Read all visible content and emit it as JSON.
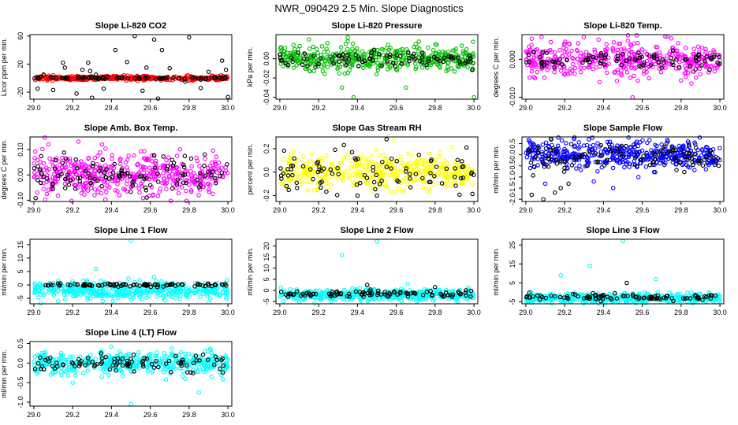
{
  "figure_title": "NWR_090429  2.5 Min. Slope Diagnostics",
  "colors": {
    "co2": "#ff0000",
    "pressure": "#00c000",
    "temp": "#ff00ff",
    "box_temp": "#ff00ff",
    "rh": "#ffff00",
    "sample_flow": "#0000ff",
    "line_flow": "#00ffff",
    "reference": "#000000"
  },
  "chart_data": [
    {
      "type": "scatter",
      "id": "co2",
      "color_key": "co2",
      "title": "Slope Li-820 CO2",
      "ylabel": "Licor ppm per min.",
      "xlim": [
        28.98,
        30.02
      ],
      "ylim": [
        -30,
        62
      ],
      "xticks": [
        "29.0",
        "29.2",
        "29.4",
        "29.6",
        "29.8",
        "30.0"
      ],
      "yticks": [
        {
          "v": -20,
          "t": "-20"
        },
        {
          "v": 20,
          "t": "20"
        },
        {
          "v": 60,
          "t": "60"
        }
      ],
      "series": [
        {
          "role": "main",
          "center": 0,
          "spread": 1.5,
          "n": 420
        },
        {
          "role": "reference",
          "center": 0,
          "spread": 1,
          "n": 80,
          "outliers": [
            [
              29.02,
              -15
            ],
            [
              29.05,
              5
            ],
            [
              29.1,
              -17
            ],
            [
              29.15,
              22
            ],
            [
              29.16,
              15
            ],
            [
              29.22,
              -22
            ],
            [
              29.25,
              12
            ],
            [
              29.28,
              22
            ],
            [
              29.29,
              10
            ],
            [
              29.3,
              -28
            ],
            [
              29.32,
              5
            ],
            [
              29.36,
              -15
            ],
            [
              29.38,
              2
            ],
            [
              29.42,
              40
            ],
            [
              29.48,
              23
            ],
            [
              29.52,
              60
            ],
            [
              29.56,
              -18
            ],
            [
              29.58,
              15
            ],
            [
              29.62,
              55
            ],
            [
              29.64,
              -35
            ],
            [
              29.66,
              40
            ],
            [
              29.7,
              14
            ],
            [
              29.78,
              -5
            ],
            [
              29.8,
              58
            ],
            [
              29.86,
              -14
            ],
            [
              29.9,
              9
            ],
            [
              29.97,
              25
            ],
            [
              29.99,
              12
            ],
            [
              30.0,
              -27
            ]
          ]
        }
      ]
    },
    {
      "type": "scatter",
      "id": "pressure",
      "color_key": "pressure",
      "title": "Slope Li-820 Pressure",
      "ylabel": "kPa per min.",
      "xlim": [
        28.98,
        30.02
      ],
      "ylim": [
        -0.042,
        0.025
      ],
      "xticks": [
        "29.0",
        "29.2",
        "29.4",
        "29.6",
        "29.8",
        "30.0"
      ],
      "yticks": [
        {
          "v": -0.04,
          "t": "-0.04"
        },
        {
          "v": -0.02,
          "t": "-0.02"
        },
        {
          "v": 0.0,
          "t": "0.00"
        }
      ],
      "series": [
        {
          "role": "main",
          "center": 0.0,
          "spread": 0.006,
          "n": 430,
          "outliers": [
            [
              29.15,
              0.02
            ],
            [
              29.32,
              -0.03
            ],
            [
              29.35,
              0.018
            ],
            [
              29.38,
              -0.04
            ],
            [
              29.65,
              -0.03
            ],
            [
              29.7,
              0.015
            ],
            [
              30.0,
              -0.04
            ]
          ]
        },
        {
          "role": "reference",
          "center": 0.0,
          "spread": 0.004,
          "n": 90
        }
      ]
    },
    {
      "type": "scatter",
      "id": "temp",
      "color_key": "temp",
      "title": "Slope Li-820 Temp.",
      "ylabel": "degrees C per min.",
      "xlim": [
        28.98,
        30.02
      ],
      "ylim": [
        -0.0105,
        0.0065
      ],
      "xticks": [
        "29.0",
        "29.2",
        "29.4",
        "29.6",
        "29.8",
        "30.0"
      ],
      "yticks": [
        {
          "v": -0.01,
          "t": "-0.010"
        },
        {
          "v": 0.0,
          "t": "0.000"
        }
      ],
      "series": [
        {
          "role": "main",
          "center": 0.0,
          "spread": 0.0022,
          "n": 430,
          "outliers": [
            [
              29.38,
              -0.006
            ],
            [
              29.55,
              -0.01
            ],
            [
              29.73,
              0.006
            ],
            [
              29.75,
              0.0055
            ]
          ]
        },
        {
          "role": "reference",
          "center": 0.0,
          "spread": 0.0012,
          "n": 90
        }
      ]
    },
    {
      "type": "scatter",
      "id": "box_temp",
      "color_key": "box_temp",
      "title": "Slope Amb. Box Temp.",
      "ylabel": "degrees C per min.",
      "xlim": [
        28.98,
        30.02
      ],
      "ylim": [
        -0.105,
        0.15
      ],
      "xticks": [
        "29.0",
        "29.2",
        "29.4",
        "29.6",
        "29.8",
        "30.0"
      ],
      "yticks": [
        {
          "v": -0.1,
          "t": "-0.10"
        },
        {
          "v": 0.0,
          "t": "0.00"
        },
        {
          "v": 0.1,
          "t": "0.10"
        }
      ],
      "series": [
        {
          "role": "main",
          "center": 0.0,
          "spread": 0.045,
          "n": 460
        },
        {
          "role": "reference",
          "center": 0.0,
          "spread": 0.04,
          "n": 110
        }
      ]
    },
    {
      "type": "scatter",
      "id": "rh",
      "color_key": "rh",
      "title": "Slope Gas Stream RH",
      "ylabel": "percent per min.",
      "xlim": [
        28.98,
        30.02
      ],
      "ylim": [
        -0.25,
        0.3
      ],
      "xticks": [
        "29.0",
        "29.2",
        "29.4",
        "29.6",
        "29.8",
        "30.0"
      ],
      "yticks": [
        {
          "v": -0.2,
          "t": "-0.2"
        },
        {
          "v": 0.0,
          "t": "0.0"
        },
        {
          "v": 0.2,
          "t": "0.2"
        }
      ],
      "series": [
        {
          "role": "main",
          "center": 0.0,
          "spread": 0.07,
          "n": 430
        },
        {
          "role": "reference",
          "center": 0.0,
          "spread": 0.08,
          "n": 90,
          "outliers": [
            [
              29.33,
              0.23
            ],
            [
              29.4,
              -0.2
            ],
            [
              29.55,
              0.28
            ],
            [
              29.5,
              -0.2
            ]
          ]
        }
      ]
    },
    {
      "type": "scatter",
      "id": "sample_flow",
      "color_key": "sample_flow",
      "title": "Slope Sample Flow",
      "ylabel": "ml/min per min.",
      "xlim": [
        28.98,
        30.02
      ],
      "ylim": [
        -2.1,
        0.8
      ],
      "xticks": [
        "29.0",
        "29.2",
        "29.4",
        "29.6",
        "29.8",
        "30.0"
      ],
      "yticks": [
        {
          "v": -2.0,
          "t": "-2.0"
        },
        {
          "v": -1.5,
          "t": "-1.5"
        },
        {
          "v": -1.0,
          "t": "-1.0"
        },
        {
          "v": -0.5,
          "t": "-0.5"
        },
        {
          "v": 0.0,
          "t": "0.0"
        },
        {
          "v": 0.5,
          "t": "0.5"
        }
      ],
      "series": [
        {
          "role": "main",
          "center": 0.0,
          "spread": 0.3,
          "n": 450,
          "outliers": [
            [
              29.1,
              -1.3
            ],
            [
              29.35,
              -1.2
            ],
            [
              29.45,
              -1.5
            ],
            [
              29.58,
              -1.0
            ]
          ]
        },
        {
          "role": "reference",
          "center": -0.1,
          "spread": 0.35,
          "n": 100,
          "outliers": [
            [
              29.03,
              -1.8
            ],
            [
              29.09,
              -2.0
            ],
            [
              29.15,
              -1.7
            ],
            [
              29.18,
              -1.5
            ],
            [
              29.22,
              -1.3
            ]
          ]
        }
      ]
    },
    {
      "type": "scatter",
      "id": "line1",
      "color_key": "line_flow",
      "title": "Slope Line 1 Flow",
      "ylabel": "ml/min per min.",
      "xlim": [
        28.98,
        30.02
      ],
      "ylim": [
        -7,
        17
      ],
      "xticks": [
        "29.0",
        "29.2",
        "29.4",
        "29.6",
        "29.8",
        "30.0"
      ],
      "yticks": [
        {
          "v": -5,
          "t": "-5"
        },
        {
          "v": 0,
          "t": "0"
        },
        {
          "v": 5,
          "t": "5"
        },
        {
          "v": 10,
          "t": "10"
        },
        {
          "v": 15,
          "t": "15"
        }
      ],
      "series": [
        {
          "role": "main",
          "center": -2,
          "spread": 1.6,
          "n": 440,
          "outliers": [
            [
              29.32,
              6
            ],
            [
              29.5,
              16.5
            ],
            [
              29.62,
              3
            ]
          ]
        },
        {
          "role": "reference",
          "center": 0,
          "spread": 0.3,
          "n": 95
        }
      ]
    },
    {
      "type": "scatter",
      "id": "line2",
      "color_key": "line_flow",
      "title": "Slope Line 2 Flow",
      "ylabel": "ml/min per min.",
      "xlim": [
        28.98,
        30.02
      ],
      "ylim": [
        -6,
        23
      ],
      "xticks": [
        "29.0",
        "29.2",
        "29.4",
        "29.6",
        "29.8",
        "30.0"
      ],
      "yticks": [
        {
          "v": -5,
          "t": "-5"
        },
        {
          "v": 0,
          "t": "0"
        },
        {
          "v": 5,
          "t": "5"
        },
        {
          "v": 10,
          "t": "10"
        },
        {
          "v": 15,
          "t": "15"
        },
        {
          "v": 20,
          "t": "20"
        }
      ],
      "series": [
        {
          "role": "main",
          "center": -2,
          "spread": 1.2,
          "n": 440,
          "outliers": [
            [
              29.32,
              16
            ],
            [
              29.5,
              22
            ],
            [
              29.66,
              3
            ]
          ]
        },
        {
          "role": "reference",
          "center": -1.5,
          "spread": 0.8,
          "n": 95,
          "outliers": [
            [
              29.45,
              2.5
            ],
            [
              29.8,
              1.5
            ]
          ]
        }
      ]
    },
    {
      "type": "scatter",
      "id": "line3",
      "color_key": "line_flow",
      "title": "Slope Line 3 Flow",
      "ylabel": "ml/min per min.",
      "xlim": [
        28.98,
        30.02
      ],
      "ylim": [
        -6,
        28
      ],
      "xticks": [
        "29.0",
        "29.2",
        "29.4",
        "29.6",
        "29.8",
        "30.0"
      ],
      "yticks": [
        {
          "v": -5,
          "t": "-5"
        },
        {
          "v": 5,
          "t": "5"
        },
        {
          "v": 15,
          "t": "15"
        },
        {
          "v": 25,
          "t": "25"
        }
      ],
      "series": [
        {
          "role": "main",
          "center": -3,
          "spread": 1.2,
          "n": 440,
          "outliers": [
            [
              29.18,
              9
            ],
            [
              29.33,
              14
            ],
            [
              29.5,
              27
            ],
            [
              29.67,
              7
            ]
          ]
        },
        {
          "role": "reference",
          "center": -2.5,
          "spread": 0.9,
          "n": 95,
          "outliers": [
            [
              29.52,
              5
            ],
            [
              29.76,
              -4.5
            ]
          ]
        }
      ]
    },
    {
      "type": "scatter",
      "id": "line4",
      "color_key": "line_flow",
      "title": "Slope Line 4 (LT) Flow",
      "ylabel": "ml/min per min.",
      "xlim": [
        28.98,
        30.02
      ],
      "ylim": [
        -1.1,
        0.55
      ],
      "xticks": [
        "29.0",
        "29.2",
        "29.4",
        "29.6",
        "29.8",
        "30.0"
      ],
      "yticks": [
        {
          "v": -1.0,
          "t": "-1.0"
        },
        {
          "v": -0.5,
          "t": "-0.5"
        },
        {
          "v": 0.0,
          "t": "0.0"
        },
        {
          "v": 0.5,
          "t": "0.5"
        }
      ],
      "series": [
        {
          "role": "main",
          "center": 0.0,
          "spread": 0.14,
          "n": 440,
          "outliers": [
            [
              29.2,
              -0.5
            ],
            [
              29.35,
              -0.35
            ],
            [
              29.5,
              -1.05
            ],
            [
              29.78,
              -0.4
            ],
            [
              29.85,
              -0.75
            ]
          ]
        },
        {
          "role": "reference",
          "center": 0.0,
          "spread": 0.12,
          "n": 95
        }
      ]
    }
  ]
}
